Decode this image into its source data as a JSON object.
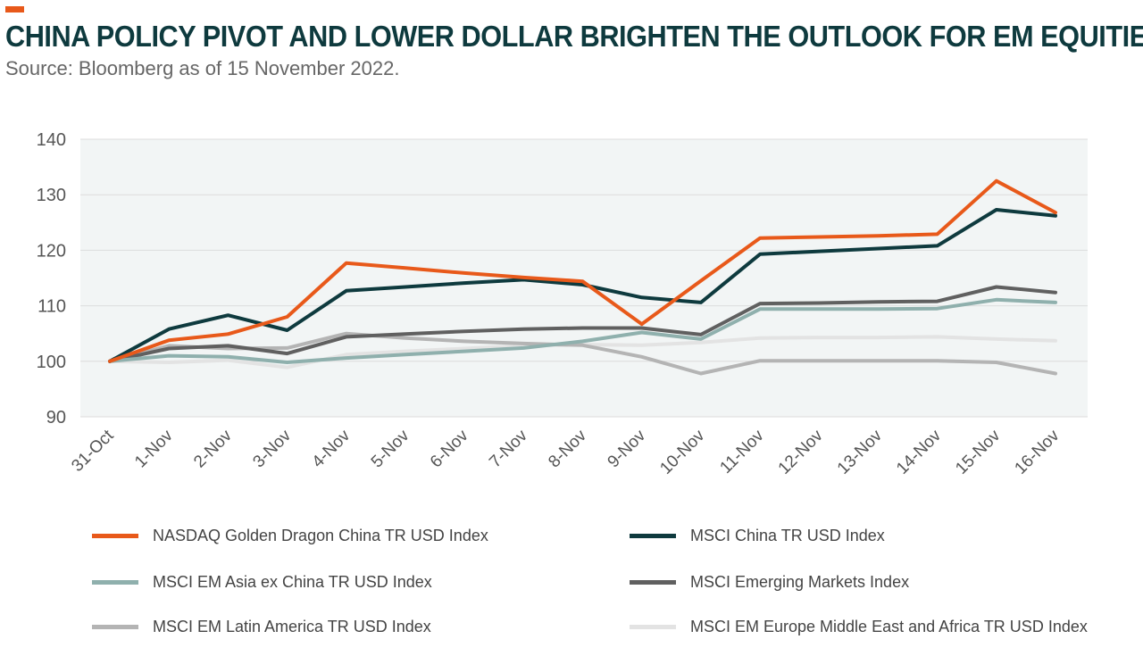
{
  "header": {
    "title": "CHINA POLICY PIVOT AND LOWER DOLLAR BRIGHTEN THE OUTLOOK FOR EM EQUITIES",
    "subtitle": "Source: Bloomberg as of 15 November 2022.",
    "accent_color": "#e8591a"
  },
  "chart_data": {
    "type": "line",
    "categories": [
      "31-Oct",
      "1-Nov",
      "2-Nov",
      "3-Nov",
      "4-Nov",
      "5-Nov",
      "6-Nov",
      "7-Nov",
      "8-Nov",
      "9-Nov",
      "10-Nov",
      "11-Nov",
      "12-Nov",
      "13-Nov",
      "14-Nov",
      "15-Nov",
      "16-Nov"
    ],
    "ylim": [
      90,
      140
    ],
    "yticks": [
      "90",
      "100",
      "110",
      "120",
      "130",
      "140"
    ],
    "grid": true,
    "plot_background": "#f2f5f5",
    "legend_placement": "bottom",
    "series": [
      {
        "name": "NASDAQ Golden Dragon China TR USD Index",
        "color": "#e8591a",
        "values": [
          100,
          103.8,
          104.9,
          108,
          117.7,
          116.8,
          115.9,
          115.1,
          114.4,
          106.7,
          114.5,
          122.2,
          122.4,
          122.6,
          122.9,
          132.5,
          126.8
        ]
      },
      {
        "name": "MSCI China TR USD Index",
        "color": "#0e3a3e",
        "values": [
          100,
          105.8,
          108.3,
          105.6,
          112.7,
          113.4,
          114.1,
          114.7,
          113.8,
          111.5,
          110.6,
          119.3,
          119.8,
          120.3,
          120.8,
          127.3,
          126.2
        ]
      },
      {
        "name": "MSCI EM Asia ex China TR USD Index",
        "color": "#8fb0ad",
        "values": [
          100,
          101,
          100.8,
          99.8,
          100.6,
          101.2,
          101.8,
          102.4,
          103.6,
          105.2,
          104,
          109.4,
          109.4,
          109.4,
          109.5,
          111.1,
          110.6
        ]
      },
      {
        "name": "MSCI Emerging Markets Index",
        "color": "#606060",
        "values": [
          100,
          102.3,
          102.8,
          101.4,
          104.4,
          104.9,
          105.4,
          105.8,
          106,
          106,
          104.8,
          110.4,
          110.5,
          110.7,
          110.8,
          113.4,
          112.4
        ]
      },
      {
        "name": "MSCI EM Latin America TR USD Index",
        "color": "#b4b4b4",
        "values": [
          100,
          102.8,
          102.3,
          102.4,
          105,
          104.2,
          103.6,
          103.2,
          102.9,
          100.8,
          97.8,
          100.1,
          100.1,
          100.1,
          100.1,
          99.8,
          97.8
        ]
      },
      {
        "name": "MSCI EM Europe Middle East and Africa TR USD Index",
        "color": "#e3e3e3",
        "values": [
          100,
          99.8,
          100.2,
          98.9,
          101.2,
          101.8,
          102.3,
          102.8,
          103,
          102.9,
          103.4,
          104.2,
          104.3,
          104.3,
          104.4,
          104,
          103.7
        ]
      }
    ]
  }
}
